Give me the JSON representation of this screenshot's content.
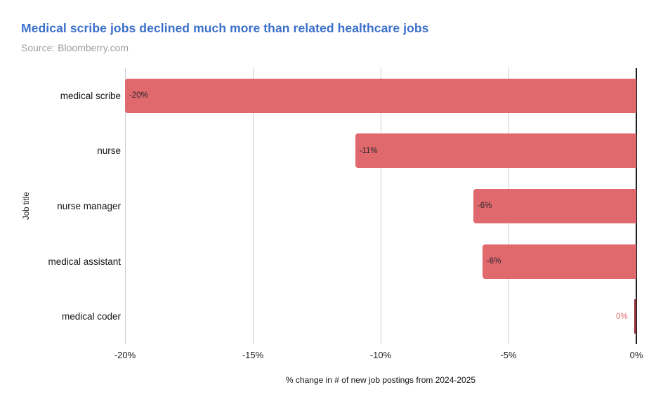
{
  "header": {
    "title": "Medical scribe jobs declined much more than related healthcare jobs",
    "source": "Source: Bloomberry.com"
  },
  "chart": {
    "y_axis_title": "Job title",
    "x_axis_title": "% change in # of new job postings from 2024-2025",
    "colors": {
      "bar": "#e0696e",
      "tiny_bar": "#93333b",
      "outside_label": "#e0696d",
      "gridline": "#cdcdcd",
      "axis_line": "#1f1f1f",
      "title_blue": "#3a6fc9",
      "source_gray": "#9c9c9c"
    },
    "ticks": [
      {
        "label": "-20%",
        "pos_pct": 0
      },
      {
        "label": "-15%",
        "pos_pct": 25
      },
      {
        "label": "-10%",
        "pos_pct": 50
      },
      {
        "label": "-5%",
        "pos_pct": 75
      },
      {
        "label": "0%",
        "pos_pct": 100
      }
    ],
    "bars": [
      {
        "category": "medical scribe",
        "value_label": "-20%",
        "width_pct": 100,
        "label_placement": "inside"
      },
      {
        "category": "nurse",
        "value_label": "-11%",
        "width_pct": 55,
        "label_placement": "inside"
      },
      {
        "category": "nurse manager",
        "value_label": "-6%",
        "width_pct": 31.9,
        "label_placement": "inside"
      },
      {
        "category": "medical assistant",
        "value_label": "-6%",
        "width_pct": 30.1,
        "label_placement": "inside"
      },
      {
        "category": "medical coder",
        "value_label": "0%",
        "width_pct": 0.45,
        "label_placement": "outside",
        "tiny": true
      }
    ]
  },
  "chart_data": {
    "type": "bar",
    "orientation": "horizontal",
    "title": "Medical scribe jobs declined much more than related healthcare jobs",
    "source": "Source: Bloomberry.com",
    "categories": [
      "medical scribe",
      "nurse",
      "nurse manager",
      "medical assistant",
      "medical coder"
    ],
    "values": [
      -20,
      -11,
      -6,
      -6,
      0
    ],
    "value_labels": [
      "-20%",
      "-11%",
      "-6%",
      "-6%",
      "0%"
    ],
    "xlabel": "% change in # of new job postings from 2024-2025",
    "ylabel": "Job title",
    "xlim": [
      -20,
      0
    ],
    "x_tick_labels": [
      "-20%",
      "-15%",
      "-10%",
      "-5%",
      "0%"
    ],
    "grid": "vertical-only",
    "legend": "none",
    "bar_color": "#e0696e"
  }
}
